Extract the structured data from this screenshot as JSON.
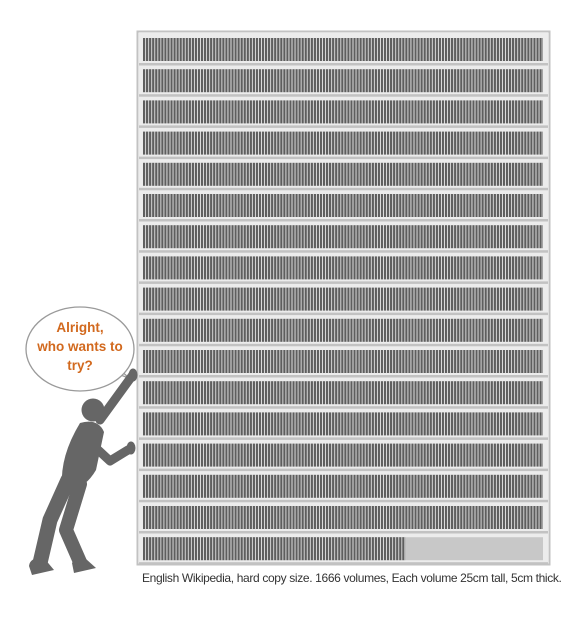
{
  "speech_bubble": {
    "lines": [
      "Alright,",
      "who wants to",
      "try?"
    ]
  },
  "caption": "English Wikipedia, hard copy size. 1666 volumes, Each volume 25cm tall, 5cm thick.",
  "shelf": {
    "total_volumes": 1666,
    "full_rows": 16,
    "last_row_fill_fraction": 0.656
  },
  "colors": {
    "shelf_frame": "#c2c2c2",
    "shelf_background": "#e9e9e9",
    "book_spine": "#5e5e5e",
    "book_gap": "#e4e4e4",
    "empty_shelf_space": "#c8c8c8",
    "person_silhouette": "#666666",
    "speech_text": "#d2691e"
  },
  "icons": {
    "person": "person-pushing-silhouette",
    "bubble": "speech-bubble"
  }
}
